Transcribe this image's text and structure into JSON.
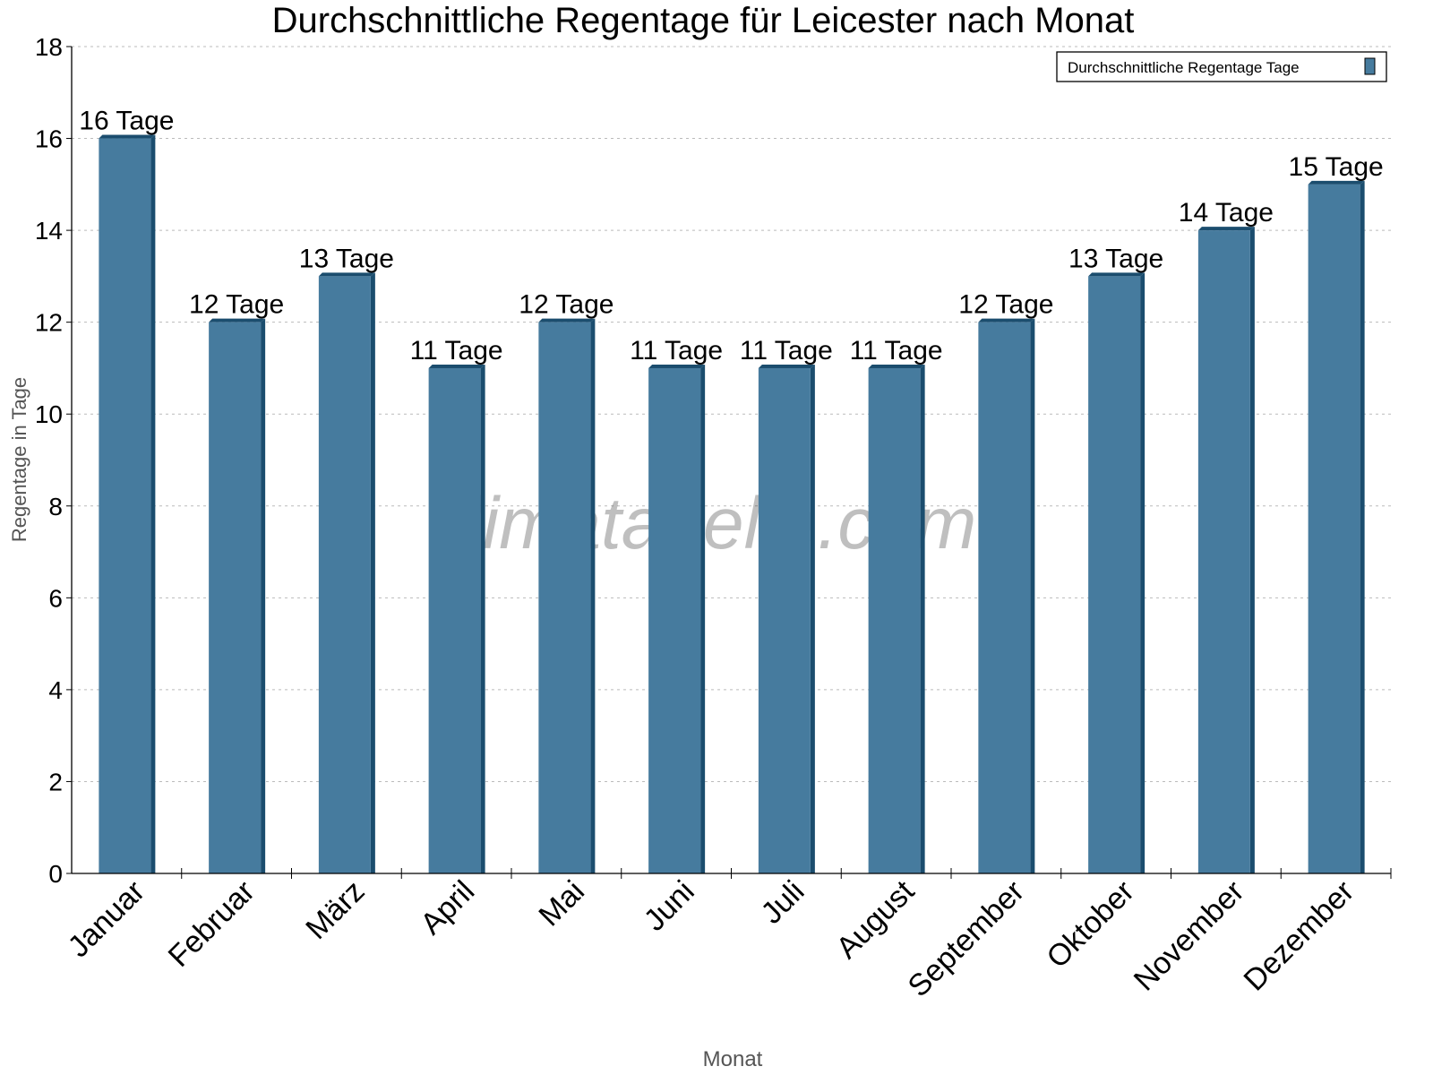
{
  "chart_data": {
    "type": "bar",
    "title": "Durchschnittliche Regentage für Leicester nach Monat",
    "xlabel": "Monat",
    "ylabel": "Regentage in Tage",
    "ylim": [
      0,
      18
    ],
    "yticks": [
      0,
      2,
      4,
      6,
      8,
      10,
      12,
      14,
      16,
      18
    ],
    "grid": true,
    "legend_position": "top-right",
    "categories": [
      "Januar",
      "Februar",
      "März",
      "April",
      "Mai",
      "Juni",
      "Juli",
      "August",
      "September",
      "Oktober",
      "November",
      "Dezember"
    ],
    "series": [
      {
        "name": "Durchschnittliche Regentage Tage",
        "values": [
          16,
          12,
          13,
          11,
          12,
          11,
          11,
          11,
          12,
          13,
          14,
          15
        ],
        "data_labels": [
          "16 Tage",
          "12 Tage",
          "13 Tage",
          "11 Tage",
          "12 Tage",
          "11 Tage",
          "11 Tage",
          "11 Tage",
          "12 Tage",
          "13 Tage",
          "14 Tage",
          "15 Tage"
        ],
        "color": "#467b9e",
        "shade_color": "#1b4d6e"
      }
    ],
    "watermark": "klimatabelle.com"
  }
}
